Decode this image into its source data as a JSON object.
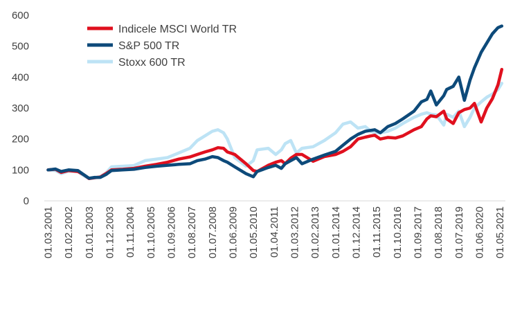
{
  "chart_data": {
    "type": "line",
    "title": "",
    "xlabel": "",
    "ylabel": "",
    "ylim": [
      0,
      600
    ],
    "yticks": [
      0,
      100,
      200,
      300,
      400,
      500,
      600
    ],
    "ytick_labels": [
      "0",
      "100",
      "200",
      "300",
      "400",
      "500",
      "600"
    ],
    "grid": false,
    "legend_position": "top-left",
    "x_tick_labels": [
      "01.03.2001",
      "01.02.2002",
      "01.01.2003",
      "01.12.2003",
      "01.11.2004",
      "01.10.2005",
      "01.09.2006",
      "01.08.2007",
      "01.07.2008",
      "01.06.2009",
      "01.05.2010",
      "01.04.2011",
      "01.03.2012",
      "01.02.2013",
      "01.01.2014",
      "01.12.2014",
      "01.11.2015",
      "01.10.2016",
      "01.09.2017",
      "01.08.2018",
      "01.07.2019",
      "01.06.2020",
      "01.05.2021"
    ],
    "x": [
      2001.17,
      2001.5,
      2001.75,
      2002.08,
      2002.5,
      2002.75,
      2003.0,
      2003.25,
      2003.5,
      2003.75,
      2004.0,
      2004.5,
      2005.0,
      2005.5,
      2006.0,
      2006.5,
      2007.0,
      2007.5,
      2007.83,
      2008.17,
      2008.5,
      2008.75,
      2009.0,
      2009.17,
      2009.5,
      2010.0,
      2010.33,
      2010.5,
      2011.0,
      2011.33,
      2011.58,
      2011.75,
      2012.0,
      2012.25,
      2012.5,
      2013.0,
      2013.5,
      2014.0,
      2014.33,
      2014.67,
      2015.0,
      2015.33,
      2015.58,
      2015.75,
      2016.0,
      2016.33,
      2016.67,
      2017.0,
      2017.5,
      2017.83,
      2018.08,
      2018.25,
      2018.5,
      2018.83,
      2018.96,
      2019.25,
      2019.5,
      2019.75,
      2020.0,
      2020.2,
      2020.5,
      2020.75,
      2021.0,
      2021.25,
      2021.42
    ],
    "series": [
      {
        "name": "Indicele MSCI World TR",
        "color": "#e0101e",
        "values": [
          100,
          102,
          92,
          98,
          95,
          85,
          72,
          75,
          77,
          88,
          100,
          102,
          105,
          112,
          118,
          125,
          135,
          142,
          150,
          158,
          165,
          172,
          170,
          158,
          150,
          120,
          98,
          95,
          115,
          125,
          130,
          120,
          138,
          150,
          150,
          128,
          143,
          150,
          160,
          175,
          200,
          206,
          210,
          212,
          200,
          205,
          203,
          210,
          230,
          240,
          265,
          275,
          272,
          290,
          265,
          250,
          285,
          295,
          300,
          315,
          255,
          300,
          330,
          375,
          425
        ]
      },
      {
        "name": "S&P 500 TR",
        "color": "#0d4a7a",
        "values": [
          100,
          103,
          95,
          100,
          98,
          85,
          73,
          76,
          76,
          85,
          98,
          100,
          102,
          108,
          112,
          115,
          118,
          120,
          130,
          135,
          143,
          140,
          130,
          125,
          110,
          88,
          78,
          95,
          108,
          115,
          105,
          120,
          130,
          140,
          120,
          135,
          148,
          160,
          180,
          200,
          215,
          225,
          228,
          230,
          220,
          240,
          250,
          265,
          290,
          320,
          328,
          355,
          310,
          340,
          360,
          370,
          400,
          325,
          390,
          430,
          480,
          510,
          540,
          560,
          565
        ]
      },
      {
        "name": "Stoxx 600 TR",
        "color": "#bde3f5",
        "values": [
          100,
          98,
          88,
          96,
          95,
          82,
          72,
          74,
          78,
          90,
          110,
          112,
          114,
          130,
          135,
          140,
          155,
          170,
          195,
          210,
          225,
          230,
          220,
          200,
          140,
          112,
          130,
          165,
          170,
          150,
          165,
          185,
          195,
          155,
          170,
          175,
          195,
          220,
          248,
          255,
          235,
          240,
          225,
          220,
          220,
          225,
          235,
          250,
          270,
          280,
          285,
          280,
          278,
          245,
          280,
          270,
          290,
          240,
          270,
          300,
          320,
          335,
          345,
          360,
          380
        ]
      }
    ]
  }
}
